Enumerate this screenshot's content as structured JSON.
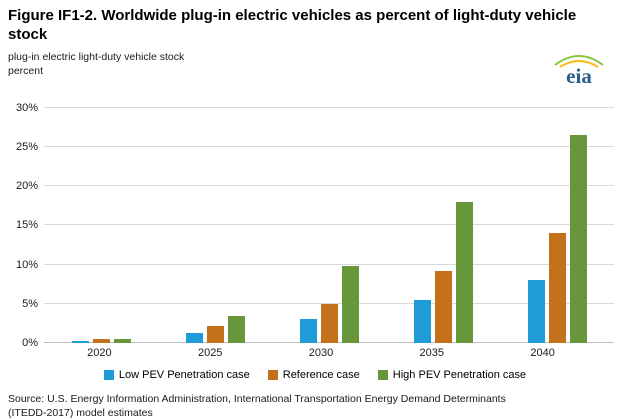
{
  "header": {
    "title": "Figure IF1-2. Worldwide plug-in electric vehicles as percent of light-duty vehicle stock",
    "subtitle_line1": "plug-in electric light-duty vehicle stock",
    "subtitle_line2": "percent",
    "logo_text": "eia"
  },
  "chart_data": {
    "type": "bar",
    "title": "Figure IF1-2. Worldwide plug-in electric vehicles as percent of light-duty vehicle stock",
    "categories": [
      "2020",
      "2025",
      "2030",
      "2035",
      "2040"
    ],
    "series": [
      {
        "name": "Low PEV Penetration case",
        "color": "#1f9bd7",
        "values": [
          0.2,
          1.2,
          3.0,
          5.5,
          8.0
        ]
      },
      {
        "name": "Reference case",
        "color": "#c4711c",
        "values": [
          0.5,
          2.2,
          5.0,
          9.2,
          14.0
        ]
      },
      {
        "name": "High PEV Penetration case",
        "color": "#68973b",
        "values": [
          0.5,
          3.4,
          9.8,
          18.0,
          26.5
        ]
      }
    ],
    "xlabel": "",
    "ylabel": "percent",
    "ylim": [
      0,
      30
    ],
    "yticks": [
      0,
      5,
      10,
      15,
      20,
      25,
      30
    ],
    "ytick_suffix": "%",
    "grid": true,
    "legend_position": "bottom",
    "colors": {
      "gridline": "#d9d9d9",
      "baseline": "#bfbfbf",
      "logo_text": "#2a5e8c",
      "logo_arc_green": "#8dc63f",
      "logo_arc_yellow": "#fdb813"
    }
  },
  "footer": {
    "source_line1": "Source: U.S. Energy Information Administration, International Transportation Energy Demand Determinants",
    "source_line2": "(ITEDD-2017) model estimates"
  }
}
